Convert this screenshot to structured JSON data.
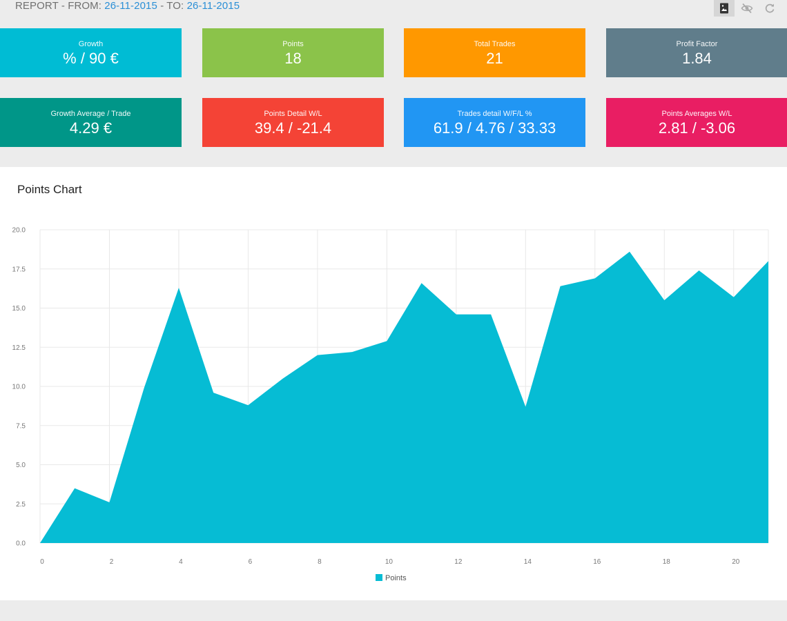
{
  "header": {
    "prefix": "REPORT - FROM: ",
    "from_date": "26-11-2015",
    "separator": " - TO: ",
    "to_date": "26-11-2015",
    "tools": [
      {
        "name": "image-icon",
        "active": true
      },
      {
        "name": "eye-off-icon",
        "active": false
      },
      {
        "name": "refresh-icon",
        "active": false
      }
    ]
  },
  "cards": [
    {
      "label": "Growth",
      "value": "% / 90 €",
      "color": "#00bcd4"
    },
    {
      "label": "Points",
      "value": "18",
      "color": "#8bc34a"
    },
    {
      "label": "Total Trades",
      "value": "21",
      "color": "#ff9800"
    },
    {
      "label": "Profit Factor",
      "value": "1.84",
      "color": "#607d8b"
    },
    {
      "label": "Growth Average / Trade",
      "value": "4.29 €",
      "color": "#009688"
    },
    {
      "label": "Points Detail W/L",
      "value": "39.4 / -21.4",
      "color": "#f44336"
    },
    {
      "label": "Trades detail W/F/L %",
      "value": "61.9 / 4.76 / 33.33",
      "color": "#2196f3"
    },
    {
      "label": "Points Averages W/L",
      "value": "2.81 / -3.06",
      "color": "#e91e63"
    }
  ],
  "chart_panel": {
    "title": "Points Chart"
  },
  "chart_data": {
    "type": "area",
    "title": "Points Chart",
    "xlabel": "",
    "ylabel": "",
    "x": [
      0,
      1,
      2,
      3,
      4,
      5,
      6,
      7,
      8,
      9,
      10,
      11,
      12,
      13,
      14,
      15,
      16,
      17,
      18,
      19,
      20,
      21
    ],
    "xlim": [
      0,
      21
    ],
    "ylim": [
      0,
      20
    ],
    "xticks": [
      0,
      2,
      4,
      6,
      8,
      10,
      12,
      14,
      16,
      18,
      20
    ],
    "yticks": [
      "0.0",
      "2.5",
      "5.0",
      "7.5",
      "10.0",
      "12.5",
      "15.0",
      "17.5",
      "20.0"
    ],
    "grid": true,
    "legend": "bottom-center",
    "series": [
      {
        "name": "Points",
        "color": "#06bcd4",
        "values": [
          0,
          3.5,
          2.6,
          9.9,
          16.3,
          9.6,
          8.8,
          10.5,
          12.0,
          12.2,
          12.9,
          16.6,
          14.6,
          14.6,
          8.7,
          16.4,
          16.9,
          18.6,
          15.5,
          17.4,
          15.7,
          18.0
        ]
      }
    ]
  }
}
